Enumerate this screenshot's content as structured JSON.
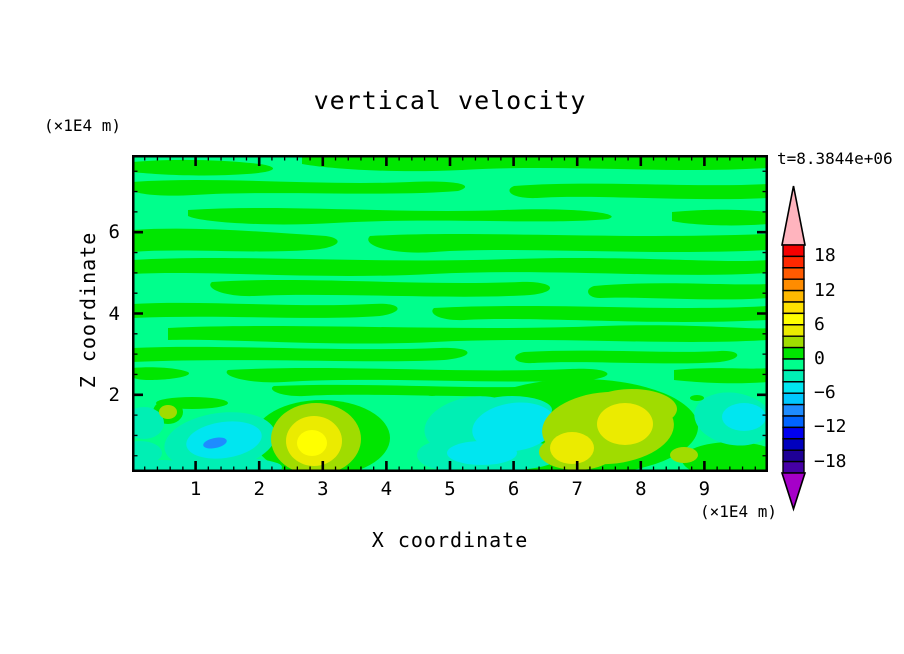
{
  "title": "vertical velocity",
  "timestamp_label": "t=8.3844e+06",
  "axes": {
    "x_label": "X coordinate",
    "x_unit": "(×1E4 m)",
    "z_label": "Z coordinate",
    "z_unit": "(×1E4 m)",
    "x_tick_labels": [
      "1",
      "2",
      "3",
      "4",
      "5",
      "6",
      "7",
      "8",
      "9"
    ],
    "z_tick_labels": [
      "6",
      "4",
      "2"
    ]
  },
  "colorbar": {
    "tick_labels": [
      "18",
      "12",
      "6",
      "0",
      "−6",
      "−12",
      "−18"
    ],
    "cells": [
      "#F50000",
      "#FF2800",
      "#FF5A00",
      "#FF8C00",
      "#FFB900",
      "#FFE100",
      "#FFFF00",
      "#EBEB00",
      "#A0DC00",
      "#00E600",
      "#00FF8C",
      "#00EFB4",
      "#00E6F0",
      "#00C8FF",
      "#1E8CFF",
      "#0064FF",
      "#0000F0",
      "#0000BE",
      "#1E0096",
      "#4600A5"
    ],
    "over_arrow_color": "#FFB4BE",
    "under_arrow_color": "#A500C8",
    "outline_color": "#000000"
  },
  "chart_data": {
    "type": "filled_contour",
    "title": "vertical velocity",
    "xlabel": "X coordinate",
    "ylabel": "Z coordinate",
    "x_unit": "×1E4 m",
    "z_unit": "×1E4 m",
    "time_annotation": "t=8.3844e+06",
    "xlim": [
      0,
      10
    ],
    "ylim": [
      0.1,
      7.9
    ],
    "x_major_tick_step": 1,
    "x_minor_tick_step": 0.2,
    "y_major_tick_step": 2,
    "y_minor_tick_step": 0.5,
    "contour_interval": 2,
    "level_range": [
      -20,
      20
    ],
    "levels": [
      -20,
      -18,
      -16,
      -14,
      -12,
      -10,
      -8,
      -6,
      -4,
      -2,
      0,
      2,
      4,
      6,
      8,
      10,
      12,
      14,
      16,
      18,
      20
    ],
    "colorbar_labeled_levels": [
      18,
      12,
      6,
      0,
      -6,
      -12,
      -18
    ],
    "field_summary": "Velocity field dominated by values between -2 and +2 forming horizontally elongated wavy bands above z≈2; stronger convective cells confined below z≈2.",
    "features": [
      {
        "feature": "alternating wave bands, w between -2 and 2",
        "x_range": [
          0,
          10
        ],
        "z_range": [
          2,
          7.9
        ]
      },
      {
        "feature": "downdraft cell with blue core",
        "x": 1.35,
        "z": 0.55,
        "w_min_approx": -9
      },
      {
        "feature": "strong updraft cell (yellow core)",
        "x": 2.85,
        "z": 0.65,
        "w_max_approx": 7
      },
      {
        "feature": "weak updraft spot",
        "x": 0.55,
        "z": 1.0,
        "w_max_approx": 3
      },
      {
        "feature": "broad downdraft patch",
        "x": 5.4,
        "z": 0.6,
        "w_min_approx": -5
      },
      {
        "feature": "broad updraft with twin cores",
        "x": 7.4,
        "z": 0.8,
        "w_max_approx": 5
      },
      {
        "feature": "downdraft near right edge",
        "x": 9.5,
        "z": 0.9,
        "w_min_approx": -5
      },
      {
        "feature": "small downdraft at left edge",
        "x": 0.15,
        "z": 0.6,
        "w_min_approx": -4
      }
    ]
  }
}
